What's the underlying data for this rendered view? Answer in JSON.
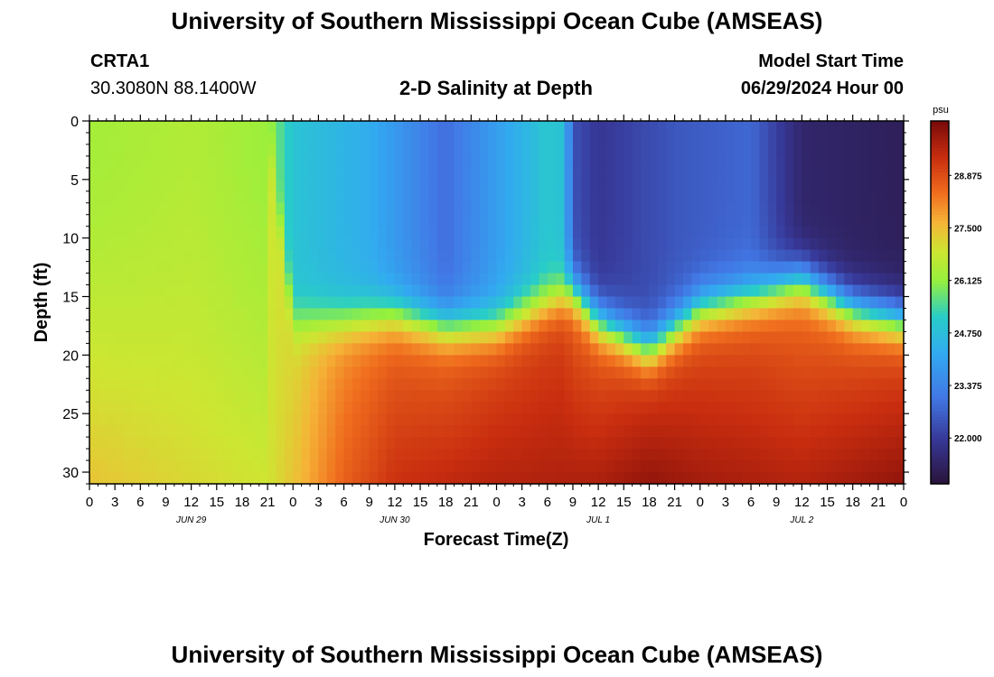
{
  "header": {
    "title": "University of Southern Mississippi Ocean Cube (AMSEAS)",
    "station_id": "CRTA1",
    "station_coords": "30.3080N  88.1400W",
    "plot_title": "2-D Salinity at Depth",
    "model_start_label": "Model Start Time",
    "model_start_value": "06/29/2024 Hour 00"
  },
  "footer": {
    "title": "University of Southern Mississippi Ocean Cube (AMSEAS)"
  },
  "chart_data": {
    "type": "heatmap",
    "xlabel": "Forecast Time(Z)",
    "ylabel": "Depth (ft)",
    "y_range": [
      0,
      31
    ],
    "y_ticks": [
      "0",
      "5",
      "10",
      "15",
      "20",
      "25",
      "30"
    ],
    "x_range_hours": [
      0,
      96
    ],
    "x_tick_labels": [
      "0",
      "3",
      "6",
      "9",
      "12",
      "15",
      "18",
      "21",
      "0",
      "3",
      "6",
      "9",
      "12",
      "15",
      "18",
      "21",
      "0",
      "3",
      "6",
      "9",
      "12",
      "15",
      "18",
      "21",
      "0",
      "3",
      "6",
      "9",
      "12",
      "15",
      "18",
      "21",
      "0"
    ],
    "day_labels": [
      "JUN 29",
      "JUN 30",
      "JUL 1",
      "JUL 2"
    ],
    "colorbar": {
      "unit": "psu",
      "range": [
        20.8,
        30.3
      ],
      "tick_labels": [
        "28.875",
        "27.500",
        "26.125",
        "24.750",
        "23.375",
        "22.000"
      ],
      "tick_values": [
        28.875,
        27.5,
        26.125,
        24.75,
        23.375,
        22.0
      ]
    },
    "surface_salinity_psu": {
      "hours": [
        0,
        12,
        21,
        24,
        33,
        42,
        54,
        56,
        57,
        60,
        69,
        78,
        84,
        96
      ],
      "values": [
        26.3,
        26.5,
        26.2,
        24.9,
        24.3,
        22.9,
        25.0,
        24.8,
        22.4,
        21.9,
        22.5,
        22.8,
        21.4,
        21.2
      ]
    },
    "bottom_salinity_psu": {
      "hours": [
        0,
        12,
        21,
        24,
        30,
        36,
        48,
        60,
        66,
        72,
        84,
        96
      ],
      "values": [
        27.4,
        27.1,
        26.9,
        27.4,
        28.6,
        29.3,
        29.6,
        29.7,
        30.0,
        29.8,
        29.6,
        30.0
      ]
    },
    "halocline_depth_ft": {
      "hours": [
        0,
        21,
        24,
        30,
        36,
        42,
        48,
        54,
        57,
        60,
        66,
        72,
        78,
        84,
        90,
        96
      ],
      "values": [
        0,
        0,
        17,
        17,
        16.5,
        17.5,
        17.5,
        15.5,
        14.5,
        17,
        19.5,
        16,
        15,
        13.5,
        16,
        17
      ]
    },
    "halocline_width_ft": 2.5,
    "grid": false
  }
}
